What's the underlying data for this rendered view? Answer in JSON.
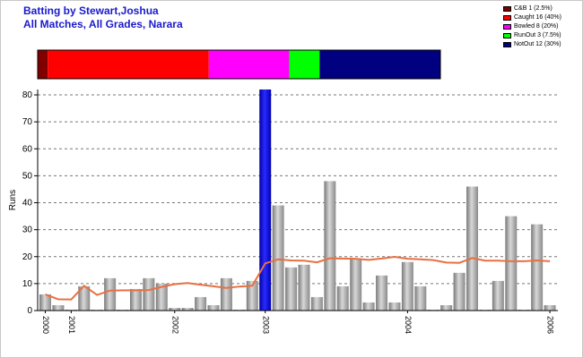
{
  "window": {
    "title_line1": "Batting by Stewart,Joshua",
    "title_line2": "All Matches, All Grades, Narara"
  },
  "legend": [
    {
      "label": "C&B 1 (2.5%)",
      "color": "#800000"
    },
    {
      "label": "Caught 16 (40%)",
      "color": "#ff0000"
    },
    {
      "label": "Bowled 8 (20%)",
      "color": "#ff00ff"
    },
    {
      "label": "RunOut 3 (7.5%)",
      "color": "#00ff00"
    },
    {
      "label": "NotOut 12 (30%)",
      "color": "#000080"
    }
  ],
  "chart_data": {
    "type": "bar",
    "ylabel": "Runs",
    "ylim": [
      0,
      82
    ],
    "yticks": [
      0,
      10,
      20,
      30,
      40,
      50,
      60,
      70,
      80
    ],
    "grid": true,
    "dismissal_bar": [
      {
        "category": "C&B",
        "count": 1,
        "color": "#800000"
      },
      {
        "category": "Caught",
        "count": 16,
        "color": "#ff0000"
      },
      {
        "category": "Bowled",
        "count": 8,
        "color": "#ff00ff"
      },
      {
        "category": "RunOut",
        "count": 3,
        "color": "#00ff00"
      },
      {
        "category": "NotOut",
        "count": 12,
        "color": "#000080"
      }
    ],
    "innings": [
      6,
      2,
      0,
      9,
      0,
      12,
      0,
      8,
      12,
      10,
      1,
      1,
      5,
      2,
      12,
      0,
      11,
      82,
      39,
      16,
      17,
      5,
      48,
      9,
      19,
      3,
      13,
      3,
      18,
      9,
      0,
      2,
      14,
      46,
      0,
      11,
      35,
      0,
      32,
      2
    ],
    "highlight_index": 17,
    "highlight_color": "#0000cc",
    "bar_color": "#a8a8a8",
    "average_line": [
      6,
      4.2,
      4.1,
      9.2,
      5.8,
      7.4,
      7.5,
      7.5,
      7.6,
      8.8,
      9.8,
      10.2,
      9.6,
      9.0,
      8.4,
      8.9,
      9.2,
      17.5,
      19.0,
      18.6,
      18.5,
      17.9,
      19.4,
      19.3,
      19.2,
      18.8,
      19.3,
      19.9,
      19.2,
      19.0,
      18.7,
      17.8,
      17.7,
      19.5,
      18.5,
      18.5,
      18.3,
      18.3,
      18.6,
      18.3
    ],
    "average_color": "#e87040",
    "year_labels": [
      {
        "label": "2000",
        "index": 0
      },
      {
        "label": "2001",
        "index": 2
      },
      {
        "label": "2002",
        "index": 10
      },
      {
        "label": "2003",
        "index": 17
      },
      {
        "label": "2004",
        "index": 28
      },
      {
        "label": "2006",
        "index": 39
      }
    ]
  }
}
